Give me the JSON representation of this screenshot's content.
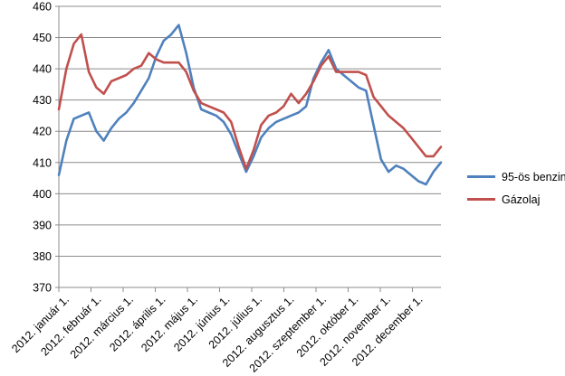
{
  "chart_data": {
    "type": "line",
    "title": "",
    "xlabel": "",
    "ylabel": "",
    "ylim": [
      370,
      460
    ],
    "y_ticks": [
      370,
      380,
      390,
      400,
      410,
      420,
      430,
      440,
      450,
      460
    ],
    "x_tick_labels": [
      "2012. január 1.",
      "2012. február 1.",
      "2012. március 1.",
      "2012. április 1.",
      "2012. május 1.",
      "2012. június 1.",
      "2012. július 1.",
      "2012. augusztus 1.",
      "2012. szeptember 1.",
      "2012. október 1.",
      "2012. november 1.",
      "2012. december 1."
    ],
    "grid": true,
    "legend_position": "right",
    "gridline_color": "#8C8C8C",
    "axis_color": "#8C8C8C",
    "text_color": "#000000",
    "series": [
      {
        "name": "95-ös benzin",
        "color": "#4F81BD",
        "values": [
          406,
          417,
          424,
          425,
          426,
          420,
          417,
          421,
          424,
          426,
          429,
          433,
          437,
          444,
          449,
          451,
          454,
          445,
          434,
          427,
          426,
          425,
          423,
          419,
          413,
          407,
          412,
          418,
          421,
          423,
          424,
          425,
          426,
          428,
          437,
          442,
          446,
          440,
          438,
          436,
          434,
          433,
          422,
          411,
          407,
          409,
          408,
          406,
          404,
          403,
          407,
          410
        ]
      },
      {
        "name": "Gázolaj",
        "color": "#C0504D",
        "values": [
          427,
          440,
          448,
          451,
          439,
          434,
          432,
          436,
          437,
          438,
          440,
          441,
          445,
          443,
          442,
          442,
          442,
          439,
          433,
          429,
          428,
          427,
          426,
          423,
          415,
          408,
          414,
          422,
          425,
          426,
          428,
          432,
          429,
          432,
          436,
          441,
          444,
          439,
          439,
          439,
          439,
          438,
          431,
          428,
          425,
          423,
          421,
          418,
          415,
          412,
          412,
          415
        ]
      }
    ]
  }
}
